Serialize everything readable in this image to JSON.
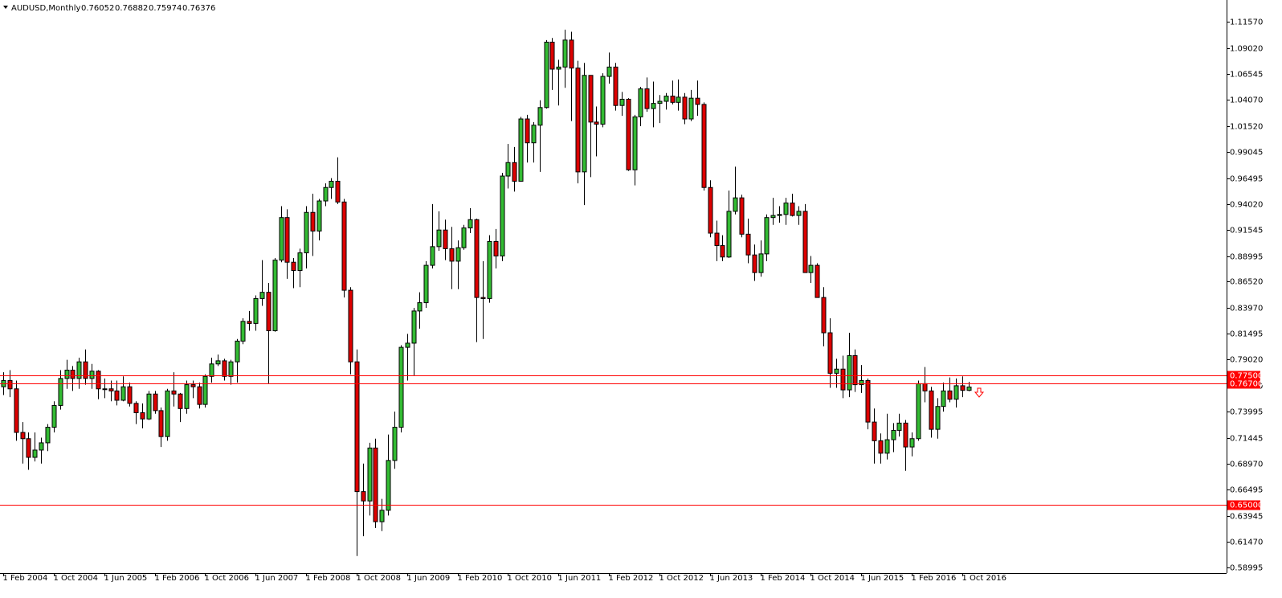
{
  "chart_data": {
    "type": "candlestick",
    "title": "AUDUSD,Monthly",
    "categories": [
      "1 Feb 2004",
      null,
      null,
      null,
      null,
      null,
      null,
      null,
      "1 Oct 2004",
      null,
      null,
      null,
      null,
      null,
      null,
      null,
      "1 Jun 2005",
      null,
      null,
      null,
      null,
      null,
      null,
      null,
      "1 Feb 2006",
      null,
      null,
      null,
      null,
      null,
      null,
      null,
      "1 Oct 2006",
      null,
      null,
      null,
      null,
      null,
      null,
      null,
      "1 Jun 2007",
      null,
      null,
      null,
      null,
      null,
      null,
      null,
      "1 Feb 2008",
      null,
      null,
      null,
      null,
      null,
      null,
      null,
      "1 Oct 2008",
      null,
      null,
      null,
      null,
      null,
      null,
      null,
      "1 Jun 2009",
      null,
      null,
      null,
      null,
      null,
      null,
      null,
      "1 Feb 2010",
      null,
      null,
      null,
      null,
      null,
      null,
      null,
      "1 Oct 2010",
      null,
      null,
      null,
      null,
      null,
      null,
      null,
      "1 Jun 2011",
      null,
      null,
      null,
      null,
      null,
      null,
      null,
      "1 Feb 2012",
      null,
      null,
      null,
      null,
      null,
      null,
      null,
      "1 Oct 2012",
      null,
      null,
      null,
      null,
      null,
      null,
      null,
      "1 Jun 2013",
      null,
      null,
      null,
      null,
      null,
      null,
      null,
      "1 Feb 2014",
      null,
      null,
      null,
      null,
      null,
      null,
      null,
      "1 Oct 2014",
      null,
      null,
      null,
      null,
      null,
      null,
      null,
      "1 Jun 2015",
      null,
      null,
      null,
      null,
      null,
      null,
      null,
      "1 Feb 2016",
      null,
      null,
      null,
      null,
      null,
      null,
      null,
      "1 Oct 2016",
      null
    ],
    "open": [
      0.764,
      0.77,
      0.762,
      0.72,
      0.714,
      0.696,
      0.703,
      0.71,
      0.725,
      0.746,
      0.772,
      0.78,
      0.772,
      0.788,
      0.772,
      0.779,
      0.762,
      0.762,
      0.76,
      0.751,
      0.764,
      0.748,
      0.739,
      0.733,
      0.757,
      0.741,
      0.716,
      0.76,
      0.757,
      0.743,
      0.766,
      0.764,
      0.747,
      0.774,
      0.786,
      0.789,
      0.774,
      0.788,
      0.808,
      0.827,
      0.825,
      0.849,
      0.855,
      0.818,
      0.886,
      0.927,
      0.884,
      0.876,
      0.893,
      0.932,
      0.914,
      0.943,
      0.956,
      0.962,
      0.942,
      0.857,
      0.788,
      0.663,
      0.654,
      0.705,
      0.634,
      0.645,
      0.693,
      0.725,
      0.802,
      0.806,
      0.837,
      0.845,
      0.881,
      0.899,
      0.915,
      0.897,
      0.885,
      0.898,
      0.917,
      0.925,
      0.85,
      0.849,
      0.904,
      0.89,
      0.967,
      0.98,
      0.962,
      1.022,
      0.999,
      1.016,
      1.033,
      1.096,
      1.07,
      1.072,
      1.098,
      1.071,
      0.971,
      1.064,
      1.019,
      1.017,
      1.063,
      1.072,
      1.035,
      1.041,
      0.973,
      1.024,
      1.051,
      1.032,
      1.037,
      1.039,
      1.044,
      1.038,
      1.043,
      1.022,
      1.042,
      1.036,
      0.956,
      0.912,
      0.9,
      0.889,
      0.933,
      0.946,
      0.911,
      0.891,
      0.874,
      0.892,
      0.927,
      0.929,
      0.93,
      0.941,
      0.929,
      0.933,
      0.874,
      0.881,
      0.85,
      0.816,
      0.777,
      0.781,
      0.761,
      0.794,
      0.766,
      0.77,
      0.73,
      0.712,
      0.7,
      0.713,
      0.722,
      0.729,
      0.706,
      0.714,
      0.767,
      0.76,
      0.723,
      0.745,
      0.76,
      0.752,
      0.765,
      0.76052
    ],
    "high": [
      0.778,
      0.78,
      0.77,
      0.73,
      0.72,
      0.72,
      0.715,
      0.728,
      0.75,
      0.78,
      0.79,
      0.784,
      0.792,
      0.8,
      0.786,
      0.78,
      0.772,
      0.77,
      0.77,
      0.774,
      0.768,
      0.75,
      0.748,
      0.76,
      0.76,
      0.744,
      0.762,
      0.778,
      0.758,
      0.77,
      0.77,
      0.768,
      0.776,
      0.792,
      0.795,
      0.791,
      0.79,
      0.81,
      0.83,
      0.837,
      0.852,
      0.886,
      0.864,
      0.888,
      0.938,
      0.935,
      0.888,
      0.897,
      0.938,
      0.95,
      0.945,
      0.96,
      0.965,
      0.985,
      0.945,
      0.86,
      0.8,
      0.69,
      0.71,
      0.714,
      0.656,
      0.718,
      0.74,
      0.804,
      0.815,
      0.84,
      0.855,
      0.885,
      0.94,
      0.933,
      0.925,
      0.918,
      0.905,
      0.92,
      0.936,
      0.926,
      0.885,
      0.91,
      0.916,
      0.97,
      0.998,
      0.995,
      1.024,
      1.026,
      1.019,
      1.04,
      1.098,
      1.1,
      1.079,
      1.108,
      1.106,
      1.078,
      1.076,
      1.064,
      1.034,
      1.066,
      1.086,
      1.076,
      1.048,
      1.042,
      1.026,
      1.053,
      1.062,
      1.058,
      1.045,
      1.047,
      1.059,
      1.06,
      1.047,
      1.05,
      1.059,
      1.038,
      0.963,
      0.924,
      0.91,
      0.953,
      0.976,
      0.949,
      0.926,
      0.901,
      0.905,
      0.93,
      0.946,
      0.938,
      0.946,
      0.95,
      0.938,
      0.94,
      0.89,
      0.883,
      0.86,
      0.83,
      0.791,
      0.794,
      0.816,
      0.8,
      0.785,
      0.772,
      0.743,
      0.719,
      0.738,
      0.729,
      0.738,
      0.732,
      0.72,
      0.77,
      0.783,
      0.764,
      0.753,
      0.768,
      0.773,
      0.772,
      0.774,
      0.76882
    ],
    "low": [
      0.756,
      0.754,
      0.712,
      0.69,
      0.684,
      0.692,
      0.69,
      0.702,
      0.72,
      0.742,
      0.762,
      0.76,
      0.762,
      0.766,
      0.762,
      0.752,
      0.753,
      0.75,
      0.746,
      0.75,
      0.745,
      0.728,
      0.724,
      0.732,
      0.738,
      0.706,
      0.712,
      0.745,
      0.73,
      0.738,
      0.753,
      0.743,
      0.744,
      0.768,
      0.784,
      0.77,
      0.766,
      0.768,
      0.805,
      0.818,
      0.818,
      0.842,
      0.767,
      0.817,
      0.884,
      0.868,
      0.859,
      0.86,
      0.878,
      0.89,
      0.905,
      0.938,
      0.945,
      0.94,
      0.85,
      0.776,
      0.601,
      0.62,
      0.64,
      0.628,
      0.625,
      0.64,
      0.685,
      0.72,
      0.77,
      0.775,
      0.82,
      0.84,
      0.878,
      0.895,
      0.886,
      0.858,
      0.858,
      0.896,
      0.912,
      0.807,
      0.81,
      0.845,
      0.878,
      0.885,
      0.955,
      0.952,
      0.962,
      0.98,
      0.98,
      0.971,
      1.032,
      1.05,
      1.035,
      1.052,
      1.02,
      0.96,
      0.939,
      0.966,
      0.986,
      1.014,
      1.056,
      1.03,
      1.025,
      0.972,
      0.958,
      1.015,
      1.029,
      1.014,
      1.018,
      1.031,
      1.036,
      1.03,
      1.017,
      1.02,
      1.025,
      0.953,
      0.908,
      0.885,
      0.885,
      0.888,
      0.93,
      0.908,
      0.883,
      0.866,
      0.87,
      0.885,
      0.92,
      0.922,
      0.92,
      0.928,
      0.92,
      0.874,
      0.864,
      0.85,
      0.803,
      0.763,
      0.763,
      0.753,
      0.754,
      0.759,
      0.758,
      0.723,
      0.69,
      0.69,
      0.694,
      0.701,
      0.716,
      0.683,
      0.697,
      0.712,
      0.749,
      0.715,
      0.714,
      0.74,
      0.749,
      0.744,
      0.754,
      0.75974
    ],
    "close": [
      0.77,
      0.762,
      0.72,
      0.714,
      0.696,
      0.703,
      0.71,
      0.725,
      0.746,
      0.772,
      0.78,
      0.772,
      0.788,
      0.772,
      0.779,
      0.762,
      0.762,
      0.76,
      0.751,
      0.764,
      0.748,
      0.739,
      0.733,
      0.757,
      0.741,
      0.716,
      0.76,
      0.757,
      0.743,
      0.766,
      0.764,
      0.747,
      0.774,
      0.786,
      0.789,
      0.774,
      0.788,
      0.808,
      0.827,
      0.825,
      0.849,
      0.855,
      0.818,
      0.886,
      0.927,
      0.884,
      0.876,
      0.893,
      0.932,
      0.914,
      0.943,
      0.956,
      0.962,
      0.942,
      0.857,
      0.788,
      0.663,
      0.654,
      0.705,
      0.634,
      0.645,
      0.693,
      0.725,
      0.802,
      0.806,
      0.837,
      0.845,
      0.881,
      0.899,
      0.915,
      0.897,
      0.885,
      0.898,
      0.917,
      0.925,
      0.85,
      0.849,
      0.904,
      0.89,
      0.967,
      0.98,
      0.962,
      1.022,
      0.999,
      1.016,
      1.033,
      1.096,
      1.07,
      1.072,
      1.098,
      1.071,
      0.971,
      1.064,
      1.019,
      1.017,
      1.063,
      1.072,
      1.035,
      1.041,
      0.973,
      1.024,
      1.051,
      1.032,
      1.037,
      1.039,
      1.044,
      1.038,
      1.043,
      1.022,
      1.042,
      1.036,
      0.956,
      0.912,
      0.9,
      0.889,
      0.933,
      0.946,
      0.911,
      0.891,
      0.874,
      0.892,
      0.927,
      0.929,
      0.93,
      0.941,
      0.929,
      0.933,
      0.874,
      0.881,
      0.85,
      0.816,
      0.777,
      0.781,
      0.761,
      0.794,
      0.766,
      0.77,
      0.73,
      0.712,
      0.7,
      0.713,
      0.722,
      0.729,
      0.706,
      0.714,
      0.767,
      0.76,
      0.723,
      0.745,
      0.76,
      0.752,
      0.765,
      0.76052,
      0.76376
    ],
    "up_color": "#33bb33",
    "down_color": "#dd0000",
    "ylim": [
      0.5845,
      1.1366
    ],
    "yticks": [
      {
        "value": 1.1157,
        "label": "1.11570"
      },
      {
        "value": 1.0902,
        "label": "1.09020"
      },
      1.06545,
      {
        "value": 1.0407,
        "label": "1.04070"
      },
      {
        "value": 1.0152,
        "label": "1.01520"
      },
      0.99045,
      0.96495,
      {
        "value": 0.9402,
        "label": "0.94020"
      },
      0.91545,
      0.88995,
      {
        "value": 0.8652,
        "label": "0.86520"
      },
      {
        "value": 0.8397,
        "label": "0.83970"
      },
      0.81495,
      {
        "value": 0.7902,
        "label": "0.79020"
      },
      {
        "value": 0.7647,
        "label": "0.76470"
      },
      0.73995,
      0.71445,
      {
        "value": 0.6897,
        "label": "0.68970"
      },
      0.66495,
      0.63945,
      {
        "value": 0.6147,
        "label": "0.61470"
      },
      0.58995
    ],
    "levels": [
      {
        "value": 0.775,
        "label": "0.77500"
      },
      {
        "value": 0.767,
        "label": "0.76700"
      },
      {
        "value": 0.65,
        "label": "0.65000"
      }
    ],
    "level_color": "#ff0000"
  }
}
